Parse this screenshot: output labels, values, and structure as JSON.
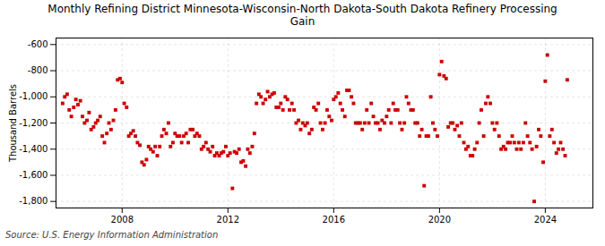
{
  "chart_data": {
    "type": "scatter",
    "title": "Monthly Refining District Minnesota-Wisconsin-North Dakota-South Dakota Refinery Processing\nGain",
    "y_label": "Thousand Barrels",
    "annotations": [
      "Source: U.S. Energy Information Administration"
    ],
    "color": "#cc0000",
    "marker": "square",
    "grid": true,
    "xlim": [
      2005.5,
      2025.8
    ],
    "xticks": [
      2008,
      2012,
      2016,
      2020,
      2024
    ],
    "ylim": [
      -1850,
      -550
    ],
    "yticks": [
      {
        "value": -1800,
        "label": "-1,800"
      },
      {
        "value": -1600,
        "label": "-1,600"
      },
      {
        "value": -1400,
        "label": "-1,400"
      },
      {
        "value": -1200,
        "label": "-1,200"
      },
      {
        "value": -1000,
        "label": "-1,000"
      },
      -800,
      -600
    ],
    "x": [
      2005.75,
      2005.83,
      2005.92,
      2006.0,
      2006.08,
      2006.17,
      2006.25,
      2006.33,
      2006.42,
      2006.5,
      2006.58,
      2006.67,
      2006.75,
      2006.83,
      2006.92,
      2007.0,
      2007.08,
      2007.17,
      2007.25,
      2007.33,
      2007.42,
      2007.5,
      2007.58,
      2007.67,
      2007.75,
      2007.83,
      2007.92,
      2008.0,
      2008.08,
      2008.17,
      2008.25,
      2008.33,
      2008.42,
      2008.5,
      2008.58,
      2008.67,
      2008.75,
      2008.83,
      2008.92,
      2009.0,
      2009.08,
      2009.17,
      2009.25,
      2009.33,
      2009.42,
      2009.5,
      2009.58,
      2009.67,
      2009.75,
      2009.83,
      2009.92,
      2010.0,
      2010.08,
      2010.17,
      2010.25,
      2010.33,
      2010.42,
      2010.5,
      2010.58,
      2010.67,
      2010.75,
      2010.83,
      2010.92,
      2011.0,
      2011.08,
      2011.17,
      2011.25,
      2011.33,
      2011.42,
      2011.5,
      2011.58,
      2011.67,
      2011.75,
      2011.83,
      2011.92,
      2012.0,
      2012.08,
      2012.17,
      2012.25,
      2012.33,
      2012.42,
      2012.5,
      2012.58,
      2012.67,
      2012.75,
      2012.83,
      2012.92,
      2013.0,
      2013.08,
      2013.17,
      2013.25,
      2013.33,
      2013.42,
      2013.5,
      2013.58,
      2013.67,
      2013.75,
      2013.83,
      2013.92,
      2014.0,
      2014.08,
      2014.17,
      2014.25,
      2014.33,
      2014.42,
      2014.5,
      2014.58,
      2014.67,
      2014.75,
      2014.83,
      2014.92,
      2015.0,
      2015.08,
      2015.17,
      2015.25,
      2015.33,
      2015.42,
      2015.5,
      2015.58,
      2015.67,
      2015.75,
      2015.83,
      2015.92,
      2016.0,
      2016.08,
      2016.17,
      2016.25,
      2016.33,
      2016.42,
      2016.5,
      2016.58,
      2016.67,
      2016.75,
      2016.83,
      2016.92,
      2017.0,
      2017.08,
      2017.17,
      2017.25,
      2017.33,
      2017.42,
      2017.5,
      2017.58,
      2017.67,
      2017.75,
      2017.83,
      2017.92,
      2018.0,
      2018.08,
      2018.17,
      2018.25,
      2018.33,
      2018.42,
      2018.5,
      2018.58,
      2018.67,
      2018.75,
      2018.83,
      2018.92,
      2019.0,
      2019.08,
      2019.17,
      2019.25,
      2019.33,
      2019.42,
      2019.5,
      2019.58,
      2019.67,
      2019.75,
      2019.83,
      2019.92,
      2020.0,
      2020.08,
      2020.17,
      2020.25,
      2020.33,
      2020.42,
      2020.5,
      2020.58,
      2020.67,
      2020.75,
      2020.83,
      2020.92,
      2021.0,
      2021.08,
      2021.17,
      2021.25,
      2021.33,
      2021.42,
      2021.5,
      2021.58,
      2021.67,
      2021.75,
      2021.83,
      2021.92,
      2022.0,
      2022.08,
      2022.17,
      2022.25,
      2022.33,
      2022.42,
      2022.5,
      2022.58,
      2022.67,
      2022.75,
      2022.83,
      2022.92,
      2023.0,
      2023.08,
      2023.17,
      2023.25,
      2023.33,
      2023.42,
      2023.5,
      2023.58,
      2023.67,
      2023.75,
      2023.83,
      2023.92,
      2024.0,
      2024.08,
      2024.17,
      2024.25,
      2024.33,
      2024.42,
      2024.5,
      2024.58,
      2024.67,
      2024.75,
      2024.83
    ],
    "values": [
      -1050,
      -1000,
      -980,
      -1100,
      -1150,
      -1080,
      -1020,
      -1060,
      -1030,
      -1150,
      -1200,
      -1180,
      -1120,
      -1250,
      -1230,
      -1200,
      -1180,
      -1150,
      -1300,
      -1350,
      -1280,
      -1200,
      -1250,
      -1180,
      -1100,
      -870,
      -860,
      -890,
      -1050,
      -1080,
      -1300,
      -1280,
      -1260,
      -1300,
      -1350,
      -1370,
      -1500,
      -1520,
      -1480,
      -1380,
      -1400,
      -1420,
      -1380,
      -1450,
      -1380,
      -1300,
      -1250,
      -1280,
      -1200,
      -1380,
      -1350,
      -1280,
      -1300,
      -1300,
      -1350,
      -1300,
      -1280,
      -1350,
      -1250,
      -1250,
      -1300,
      -1280,
      -1300,
      -1400,
      -1380,
      -1350,
      -1400,
      -1420,
      -1380,
      -1450,
      -1430,
      -1450,
      -1430,
      -1420,
      -1380,
      -1450,
      -1430,
      -1700,
      -1420,
      -1430,
      -1400,
      -1500,
      -1490,
      -1530,
      -1400,
      -1430,
      -1380,
      -1280,
      -1050,
      -980,
      -1000,
      -1050,
      -1020,
      -960,
      -1000,
      -980,
      -970,
      -1080,
      -1080,
      -1050,
      -1100,
      -1000,
      -1020,
      -1100,
      -1050,
      -1100,
      -1200,
      -1180,
      -1250,
      -1200,
      -1220,
      -1200,
      -1280,
      -1250,
      -1080,
      -1100,
      -1050,
      -1200,
      -1250,
      -1200,
      -1100,
      -1150,
      -1180,
      -1020,
      -1000,
      -970,
      -1050,
      -1100,
      -1150,
      -950,
      -950,
      -1000,
      -1050,
      -1200,
      -1200,
      -1200,
      -1250,
      -1200,
      -1100,
      -1200,
      -1050,
      -1150,
      -1200,
      -1200,
      -1250,
      -1180,
      -1200,
      -1150,
      -1100,
      -1200,
      -1050,
      -1100,
      -1100,
      -1200,
      -1250,
      -1200,
      -1000,
      -1050,
      -1100,
      -1100,
      -1200,
      -1200,
      -1300,
      -1250,
      -1680,
      -1300,
      -1300,
      -1000,
      -1200,
      -1250,
      -1300,
      -830,
      -730,
      -840,
      -860,
      -1230,
      -1200,
      -1200,
      -1250,
      -1220,
      -1300,
      -1200,
      -1350,
      -1400,
      -1380,
      -1450,
      -1450,
      -1400,
      -1350,
      -1200,
      -1100,
      -1300,
      -1050,
      -1000,
      -1050,
      -1200,
      -1250,
      -1200,
      -1300,
      -1400,
      -1380,
      -1400,
      -1350,
      -1350,
      -1300,
      -1350,
      -1400,
      -1350,
      -1400,
      -1350,
      -1200,
      -1300,
      -1350,
      -1400,
      -1800,
      -1380,
      -1250,
      -1300,
      -1500,
      -880,
      -680,
      -1300,
      -1250,
      -1350,
      -1430,
      -1400,
      -1350,
      -1400,
      -1450,
      -870
    ]
  }
}
